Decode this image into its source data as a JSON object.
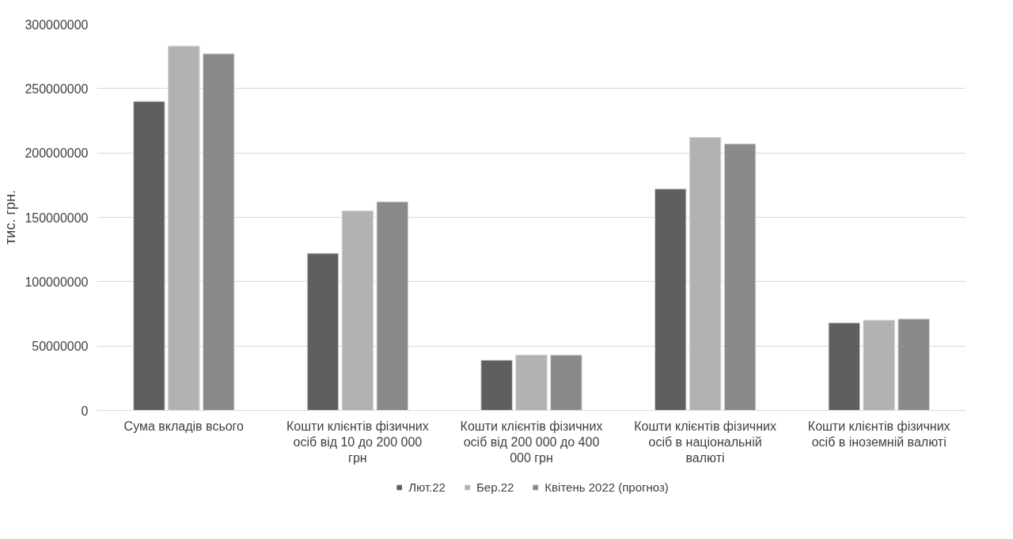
{
  "chart_data": {
    "type": "bar",
    "ylabel": "тис. грн.",
    "categories": [
      "Сума вкладів всього",
      "Кошти клієнтів фізичних осіб від 10 до 200 000 грн",
      "Кошти клієнтів фізичних осіб від 200 000 до 400 000 грн",
      "Кошти клієнтів фізичних осіб в національній валюті",
      "Кошти клієнтів фізичних осіб в іноземній валюті"
    ],
    "series": [
      {
        "name": "Лют.22",
        "color": "#5f5f5f",
        "values": [
          240000000,
          122000000,
          39000000,
          172000000,
          68000000
        ]
      },
      {
        "name": "Бер.22",
        "color": "#b2b2b2",
        "values": [
          283000000,
          155000000,
          43000000,
          212000000,
          70000000
        ]
      },
      {
        "name": "Квітень 2022 (прогноз)",
        "color": "#8a8a8a",
        "values": [
          277000000,
          162000000,
          43000000,
          207000000,
          71000000
        ]
      }
    ],
    "ylim": [
      0,
      300000000
    ],
    "yticks": [
      0,
      50000000,
      100000000,
      150000000,
      200000000,
      250000000,
      300000000
    ],
    "grid": "y",
    "legend": "bottom"
  }
}
